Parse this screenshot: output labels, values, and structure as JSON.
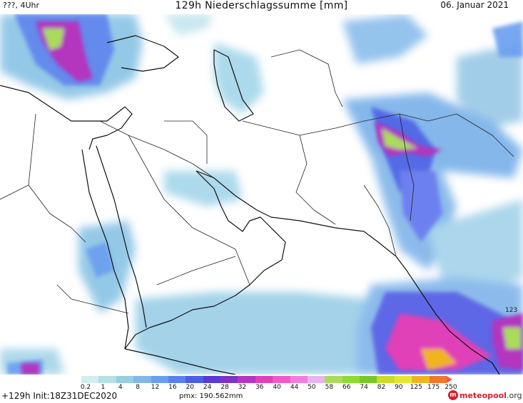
{
  "header": {
    "left": "???, 4Uhr",
    "title": "129h Niederschlagssumme [mm]",
    "date": "06. Januar 2021"
  },
  "legend": {
    "tick_labels": [
      "0.2",
      "1",
      "4",
      "8",
      "12",
      "16",
      "20",
      "24",
      "28",
      "32",
      "36",
      "40",
      "44",
      "50",
      "58",
      "66",
      "74",
      "82",
      "90",
      "125",
      "175",
      "250"
    ],
    "colors": [
      "#d2eef0",
      "#b4e0e6",
      "#96cfe0",
      "#82b8e6",
      "#6a9ef0",
      "#5a80f0",
      "#4a5ee8",
      "#5a3ad6",
      "#8032c8",
      "#b436be",
      "#e040b8",
      "#f05ac8",
      "#f07ee0",
      "#e6b4f0",
      "#aadc5a",
      "#8cdc32",
      "#78c828",
      "#c8dc28",
      "#e6e632",
      "#f0b41e",
      "#f07828"
    ]
  },
  "footer": {
    "run": "+129h Init:18Z31DEC2020",
    "pmax": "pmx: 190.562mm"
  },
  "brand": {
    "name": "meteopool",
    "tld": ".org",
    "logo_glyph": "m"
  },
  "map_labels": {
    "max_value": "123"
  },
  "colors": {
    "border_line": "#222222",
    "coast_line": "#111111",
    "brand_red": "#d81e2a"
  }
}
